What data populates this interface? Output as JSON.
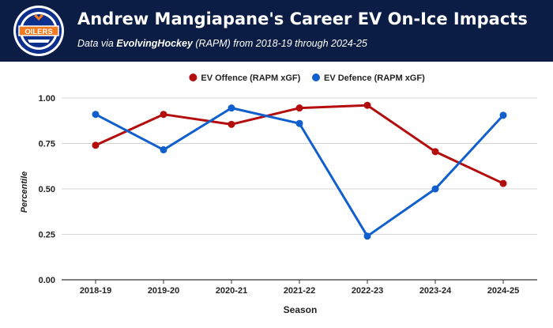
{
  "header": {
    "title": "Andrew Mangiapane's Career EV On-Ice Impacts",
    "subtitle_prefix": "Data via ",
    "subtitle_source": "EvolvingHockey",
    "subtitle_suffix": " (RAPM) from 2018-19 through 2024-25",
    "logo_text": "OILERS",
    "colors": {
      "background": "#0b1d44",
      "logo_orange": "#f47a20",
      "logo_blue": "#0b2f8a"
    }
  },
  "chart_data": {
    "type": "line",
    "categories": [
      "2018-19",
      "2019-20",
      "2020-21",
      "2021-22",
      "2022-23",
      "2023-24",
      "2024-25"
    ],
    "series": [
      {
        "name": "EV Offence (RAPM xGF)",
        "color": "#b30d0d",
        "values": [
          0.74,
          0.91,
          0.855,
          0.945,
          0.96,
          0.705,
          0.53
        ]
      },
      {
        "name": "EV Defence (RAPM xGF)",
        "color": "#0f5fcc",
        "values": [
          0.91,
          0.715,
          0.945,
          0.86,
          0.24,
          0.5,
          0.905
        ]
      }
    ],
    "xlabel": "Season",
    "ylabel": "Percentile",
    "ylim": [
      0,
      1
    ],
    "yticks": [
      "0.00",
      "0.25",
      "0.50",
      "0.75",
      "1.00"
    ],
    "legend": "top",
    "grid": true
  }
}
